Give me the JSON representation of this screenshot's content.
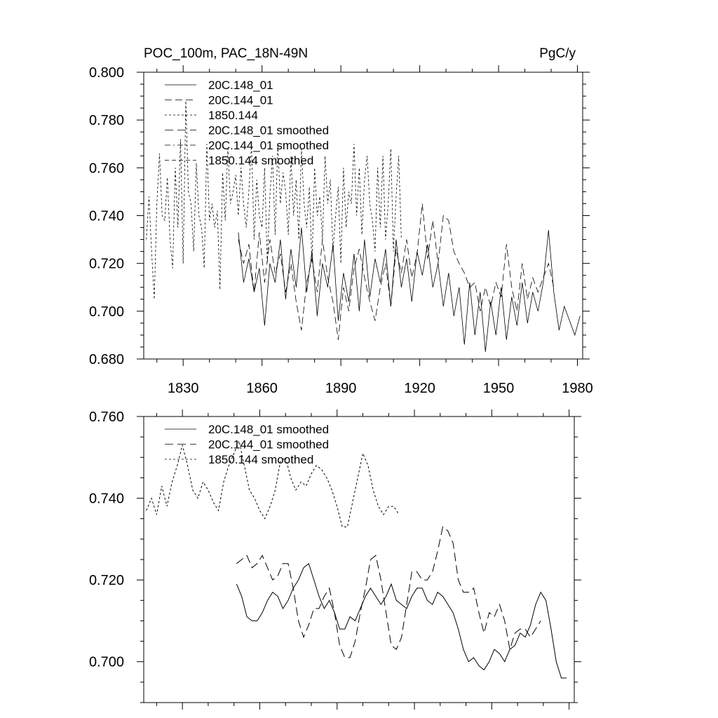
{
  "chart_data": [
    {
      "type": "line",
      "title_left": "POC_100m, PAC_18N-49N",
      "title_right": "PgC/y",
      "xlim": [
        1815,
        1982
      ],
      "ylim": [
        0.68,
        0.8
      ],
      "xticks": [
        1830,
        1860,
        1890,
        1920,
        1950,
        1980
      ],
      "xtick_labels": [
        "1830",
        "1860",
        "1890",
        "1920",
        "1950",
        "1980"
      ],
      "yticks": [
        0.68,
        0.7,
        0.72,
        0.74,
        0.76,
        0.78,
        0.8
      ],
      "ytick_labels": [
        "0.680",
        "0.700",
        "0.720",
        "0.740",
        "0.760",
        "0.780",
        "0.800"
      ],
      "series": [
        {
          "name": "20C.148_01",
          "dash": "solid",
          "width": 0.8,
          "x": [
            1851,
            1853,
            1855,
            1857,
            1859,
            1861,
            1863,
            1865,
            1867,
            1869,
            1871,
            1873,
            1875,
            1877,
            1879,
            1881,
            1883,
            1885,
            1887,
            1889,
            1891,
            1893,
            1895,
            1897,
            1899,
            1901,
            1903,
            1905,
            1907,
            1909,
            1911,
            1913,
            1915,
            1917,
            1919,
            1921,
            1923,
            1925,
            1927,
            1929,
            1931,
            1933,
            1935,
            1937,
            1939,
            1941,
            1943,
            1945,
            1947,
            1949,
            1951,
            1953,
            1955,
            1957,
            1959,
            1961,
            1963,
            1965,
            1967,
            1969,
            1971,
            1973,
            1975,
            1977,
            1979,
            1981
          ],
          "y": [
            0.733,
            0.712,
            0.722,
            0.708,
            0.718,
            0.694,
            0.72,
            0.712,
            0.73,
            0.705,
            0.726,
            0.71,
            0.735,
            0.708,
            0.725,
            0.698,
            0.72,
            0.71,
            0.728,
            0.696,
            0.716,
            0.704,
            0.724,
            0.7,
            0.73,
            0.706,
            0.722,
            0.712,
            0.726,
            0.702,
            0.73,
            0.71,
            0.722,
            0.704,
            0.725,
            0.715,
            0.728,
            0.71,
            0.72,
            0.702,
            0.716,
            0.698,
            0.71,
            0.686,
            0.712,
            0.69,
            0.708,
            0.683,
            0.704,
            0.69,
            0.71,
            0.688,
            0.706,
            0.694,
            0.712,
            0.695,
            0.708,
            0.7,
            0.712,
            0.734,
            0.708,
            0.692,
            0.702,
            0.696,
            0.69,
            0.698
          ]
        },
        {
          "name": "20C.144_01",
          "dash": "10,5",
          "width": 0.8,
          "x": [
            1851,
            1853,
            1855,
            1857,
            1859,
            1861,
            1863,
            1865,
            1867,
            1869,
            1871,
            1873,
            1875,
            1877,
            1879,
            1881,
            1883,
            1885,
            1887,
            1889,
            1891,
            1893,
            1895,
            1897,
            1899,
            1901,
            1903,
            1905,
            1907,
            1909,
            1911,
            1913,
            1915,
            1917,
            1919,
            1921,
            1923,
            1925,
            1927,
            1929,
            1931,
            1933,
            1935,
            1937,
            1939,
            1941,
            1943,
            1945,
            1947,
            1949,
            1951,
            1953,
            1955,
            1957,
            1959,
            1961,
            1963,
            1965,
            1967,
            1969,
            1971
          ],
          "y": [
            0.73,
            0.72,
            0.728,
            0.708,
            0.733,
            0.712,
            0.73,
            0.716,
            0.724,
            0.708,
            0.72,
            0.704,
            0.692,
            0.712,
            0.722,
            0.708,
            0.73,
            0.714,
            0.704,
            0.688,
            0.71,
            0.7,
            0.718,
            0.726,
            0.714,
            0.704,
            0.696,
            0.71,
            0.72,
            0.702,
            0.726,
            0.716,
            0.73,
            0.714,
            0.724,
            0.745,
            0.722,
            0.738,
            0.72,
            0.74,
            0.738,
            0.725,
            0.72,
            0.716,
            0.71,
            0.712,
            0.7,
            0.71,
            0.702,
            0.712,
            0.706,
            0.728,
            0.71,
            0.7,
            0.72,
            0.705,
            0.714,
            0.708,
            0.714,
            0.72,
            0.71
          ]
        },
        {
          "name": "1850.144",
          "dash": "3,3",
          "width": 0.8,
          "x": [
            1816,
            1817,
            1818,
            1819,
            1820,
            1821,
            1822,
            1823,
            1824,
            1825,
            1826,
            1827,
            1828,
            1829,
            1830,
            1831,
            1832,
            1833,
            1834,
            1835,
            1836,
            1837,
            1838,
            1839,
            1840,
            1841,
            1842,
            1843,
            1844,
            1845,
            1846,
            1847,
            1848,
            1849,
            1850,
            1851,
            1852,
            1853,
            1854,
            1855,
            1856,
            1857,
            1858,
            1859,
            1860,
            1861,
            1862,
            1863,
            1864,
            1865,
            1866,
            1867,
            1868,
            1869,
            1870,
            1871,
            1872,
            1873,
            1874,
            1875,
            1876,
            1877,
            1878,
            1879,
            1880,
            1881,
            1882,
            1883,
            1884,
            1885,
            1886,
            1887,
            1888,
            1889,
            1890,
            1891,
            1892,
            1893,
            1894,
            1895,
            1896,
            1897,
            1898,
            1899,
            1900,
            1901,
            1902,
            1903,
            1904,
            1905,
            1906,
            1907,
            1908,
            1909,
            1910,
            1911,
            1912,
            1913
          ],
          "y": [
            0.73,
            0.748,
            0.725,
            0.705,
            0.745,
            0.766,
            0.74,
            0.738,
            0.756,
            0.73,
            0.718,
            0.76,
            0.735,
            0.772,
            0.72,
            0.788,
            0.75,
            0.745,
            0.725,
            0.762,
            0.74,
            0.735,
            0.718,
            0.77,
            0.738,
            0.745,
            0.735,
            0.742,
            0.709,
            0.758,
            0.738,
            0.768,
            0.745,
            0.75,
            0.757,
            0.74,
            0.76,
            0.745,
            0.735,
            0.75,
            0.77,
            0.73,
            0.755,
            0.74,
            0.735,
            0.76,
            0.72,
            0.748,
            0.765,
            0.732,
            0.77,
            0.745,
            0.758,
            0.75,
            0.732,
            0.765,
            0.74,
            0.755,
            0.73,
            0.768,
            0.745,
            0.735,
            0.752,
            0.72,
            0.76,
            0.74,
            0.748,
            0.73,
            0.765,
            0.745,
            0.755,
            0.725,
            0.74,
            0.752,
            0.72,
            0.76,
            0.735,
            0.75,
            0.745,
            0.77,
            0.74,
            0.76,
            0.732,
            0.755,
            0.765,
            0.745,
            0.738,
            0.725,
            0.76,
            0.735,
            0.765,
            0.73,
            0.745,
            0.768,
            0.725,
            0.748,
            0.765,
            0.73
          ]
        }
      ],
      "legend": [
        "20C.148_01",
        "20C.144_01",
        "1850.144",
        "20C.148_01 smoothed",
        "20C.144_01 smoothed",
        "1850.144 smoothed"
      ]
    },
    {
      "type": "line",
      "xlim": [
        1815,
        1982
      ],
      "ylim": [
        0.69,
        0.76
      ],
      "xticks": [
        1830,
        1860,
        1890,
        1920,
        1950,
        1980
      ],
      "yticks": [
        0.7,
        0.72,
        0.74,
        0.76
      ],
      "ytick_labels": [
        "0.700",
        "0.720",
        "0.740",
        "0.760"
      ],
      "series": [
        {
          "name": "20C.148_01 smoothed",
          "dash": "solid",
          "width": 1,
          "x": [
            1851,
            1853,
            1855,
            1857,
            1859,
            1861,
            1863,
            1865,
            1867,
            1869,
            1871,
            1873,
            1875,
            1877,
            1879,
            1881,
            1883,
            1885,
            1887,
            1889,
            1891,
            1893,
            1895,
            1897,
            1899,
            1901,
            1903,
            1905,
            1907,
            1909,
            1911,
            1913,
            1915,
            1917,
            1919,
            1921,
            1923,
            1925,
            1927,
            1929,
            1931,
            1933,
            1935,
            1937,
            1939,
            1941,
            1943,
            1945,
            1947,
            1949,
            1951,
            1953,
            1955,
            1957,
            1959,
            1961,
            1963,
            1965,
            1967,
            1969,
            1971,
            1973,
            1975,
            1977,
            1979
          ],
          "y": [
            0.719,
            0.716,
            0.711,
            0.71,
            0.71,
            0.712,
            0.715,
            0.717,
            0.716,
            0.713,
            0.715,
            0.718,
            0.72,
            0.723,
            0.724,
            0.72,
            0.716,
            0.713,
            0.715,
            0.712,
            0.708,
            0.708,
            0.711,
            0.71,
            0.713,
            0.716,
            0.718,
            0.716,
            0.714,
            0.716,
            0.719,
            0.715,
            0.714,
            0.713,
            0.716,
            0.718,
            0.718,
            0.715,
            0.714,
            0.717,
            0.716,
            0.714,
            0.712,
            0.708,
            0.703,
            0.7,
            0.701,
            0.699,
            0.698,
            0.7,
            0.703,
            0.702,
            0.7,
            0.703,
            0.704,
            0.707,
            0.706,
            0.709,
            0.714,
            0.717,
            0.715,
            0.708,
            0.7,
            0.696,
            0.696
          ]
        },
        {
          "name": "20C.144_01 smoothed",
          "dash": "12,6",
          "width": 1,
          "x": [
            1851,
            1853,
            1855,
            1857,
            1859,
            1861,
            1863,
            1865,
            1867,
            1869,
            1871,
            1873,
            1875,
            1877,
            1879,
            1881,
            1883,
            1885,
            1887,
            1889,
            1891,
            1893,
            1895,
            1897,
            1899,
            1901,
            1903,
            1905,
            1907,
            1909,
            1911,
            1913,
            1915,
            1917,
            1919,
            1921,
            1923,
            1925,
            1927,
            1929,
            1931,
            1933,
            1935,
            1937,
            1939,
            1941,
            1943,
            1945,
            1947,
            1949,
            1951,
            1953,
            1955,
            1957,
            1959,
            1961,
            1963,
            1965,
            1967,
            1969
          ],
          "y": [
            0.724,
            0.725,
            0.726,
            0.723,
            0.724,
            0.726,
            0.723,
            0.72,
            0.721,
            0.724,
            0.724,
            0.718,
            0.71,
            0.706,
            0.709,
            0.713,
            0.713,
            0.716,
            0.718,
            0.712,
            0.704,
            0.701,
            0.701,
            0.705,
            0.712,
            0.718,
            0.725,
            0.726,
            0.72,
            0.712,
            0.704,
            0.703,
            0.706,
            0.714,
            0.722,
            0.722,
            0.72,
            0.72,
            0.722,
            0.727,
            0.733,
            0.732,
            0.729,
            0.72,
            0.717,
            0.717,
            0.718,
            0.712,
            0.707,
            0.712,
            0.711,
            0.714,
            0.71,
            0.703,
            0.707,
            0.708,
            0.708,
            0.706,
            0.708,
            0.71
          ]
        },
        {
          "name": "1850.144 smoothed",
          "dash": "3,3",
          "width": 1,
          "x": [
            1816,
            1818,
            1820,
            1822,
            1824,
            1826,
            1828,
            1830,
            1832,
            1834,
            1836,
            1838,
            1840,
            1842,
            1844,
            1846,
            1848,
            1850,
            1852,
            1854,
            1856,
            1858,
            1860,
            1862,
            1864,
            1866,
            1868,
            1870,
            1872,
            1874,
            1876,
            1878,
            1880,
            1882,
            1884,
            1886,
            1888,
            1890,
            1892,
            1894,
            1896,
            1898,
            1900,
            1902,
            1904,
            1906,
            1908,
            1910,
            1912,
            1914
          ],
          "y": [
            0.737,
            0.74,
            0.736,
            0.743,
            0.738,
            0.744,
            0.748,
            0.753,
            0.748,
            0.742,
            0.74,
            0.744,
            0.742,
            0.739,
            0.737,
            0.744,
            0.748,
            0.751,
            0.754,
            0.748,
            0.742,
            0.74,
            0.737,
            0.735,
            0.738,
            0.742,
            0.749,
            0.75,
            0.745,
            0.742,
            0.744,
            0.743,
            0.746,
            0.748,
            0.747,
            0.745,
            0.742,
            0.738,
            0.733,
            0.733,
            0.739,
            0.745,
            0.751,
            0.748,
            0.742,
            0.738,
            0.736,
            0.738,
            0.738,
            0.736
          ]
        }
      ],
      "legend": [
        "20C.148_01 smoothed",
        "20C.144_01 smoothed",
        "1850.144 smoothed"
      ]
    }
  ]
}
